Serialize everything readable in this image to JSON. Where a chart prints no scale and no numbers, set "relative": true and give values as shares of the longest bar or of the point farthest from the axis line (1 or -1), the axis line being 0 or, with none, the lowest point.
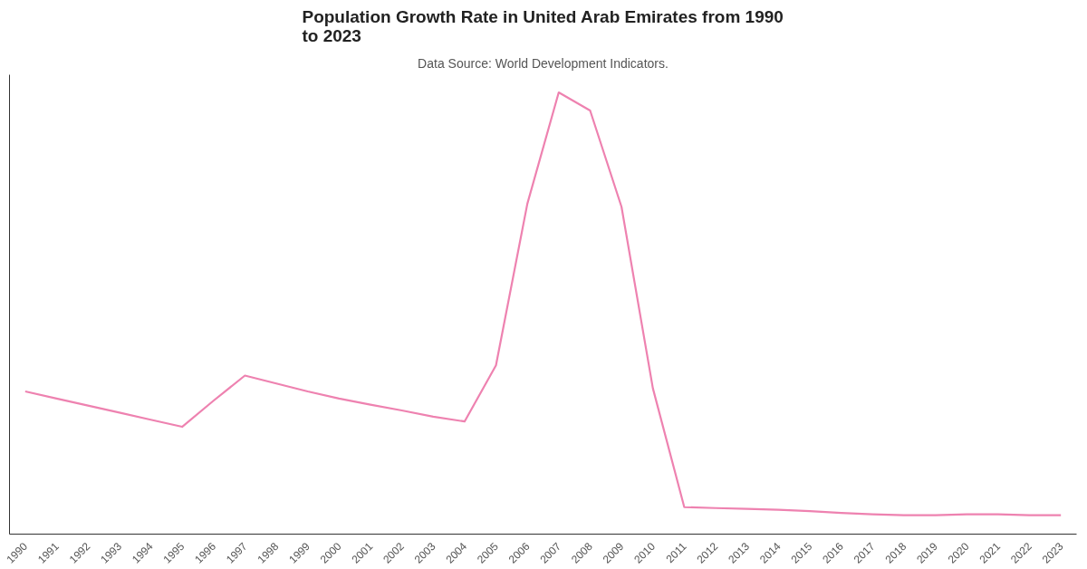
{
  "chart_data": {
    "type": "line",
    "title": "Population Growth Rate in United Arab Emirates from 1990\nto 2023",
    "subtitle": "Data Source: World Development Indicators.",
    "relative": true,
    "grid": false,
    "marker": "none",
    "line_style": "solid",
    "categories": [
      "1990",
      "1991",
      "1992",
      "1993",
      "1994",
      "1995",
      "1996",
      "1997",
      "1998",
      "1999",
      "2000",
      "2001",
      "2002",
      "2003",
      "2004",
      "2005",
      "2006",
      "2007",
      "2008",
      "2009",
      "2010",
      "2011",
      "2012",
      "2013",
      "2014",
      "2015",
      "2016",
      "2017",
      "2018",
      "2019",
      "2020",
      "2021",
      "2022",
      "2023"
    ],
    "series": [
      {
        "color": "#ee82b0",
        "values": [
          0.323,
          0.307,
          0.291,
          0.275,
          0.259,
          0.243,
          0.302,
          0.359,
          0.341,
          0.323,
          0.307,
          0.293,
          0.28,
          0.266,
          0.255,
          0.382,
          0.748,
          1,
          0.959,
          0.741,
          0.33,
          0.061,
          0.059,
          0.057,
          0.055,
          0.052,
          0.048,
          0.045,
          0.043,
          0.043,
          0.045,
          0.045,
          0.043,
          0.043
        ]
      }
    ]
  }
}
